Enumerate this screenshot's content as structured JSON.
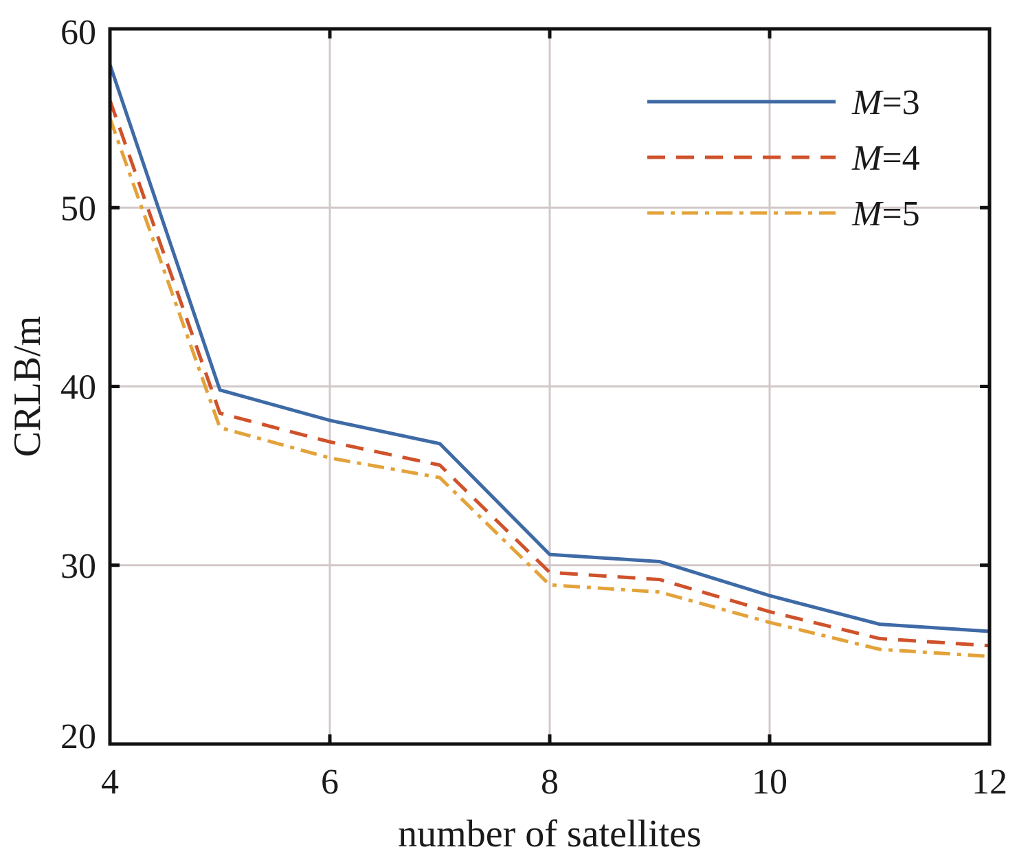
{
  "chart_data": {
    "type": "line",
    "title": "",
    "xlabel": "number of satellites",
    "ylabel": "CRLB/m",
    "xlim": [
      4,
      12
    ],
    "ylim": [
      20,
      60
    ],
    "xticks": [
      4,
      6,
      8,
      10,
      12
    ],
    "yticks": [
      20,
      30,
      40,
      50,
      60
    ],
    "xtick_labels": [
      "4",
      "6",
      "8",
      "10",
      "12"
    ],
    "ytick_labels": [
      "20",
      "30",
      "40",
      "50",
      "60"
    ],
    "grid": true,
    "legend_position": "top-right",
    "x": [
      4,
      5,
      6,
      7,
      8,
      9,
      10,
      11,
      12
    ],
    "series": [
      {
        "name": "M=3",
        "name_italic": "M",
        "name_rest": "=3",
        "color": "#3e6aa6",
        "style": "solid",
        "values": [
          58.0,
          39.8,
          38.1,
          36.8,
          30.6,
          30.2,
          28.3,
          26.7,
          26.3
        ]
      },
      {
        "name": "M=4",
        "name_italic": "M",
        "name_rest": "=4",
        "color": "#cf522b",
        "style": "dashed",
        "values": [
          56.0,
          38.5,
          36.9,
          35.6,
          29.6,
          29.2,
          27.4,
          25.9,
          25.5
        ]
      },
      {
        "name": "M=5",
        "name_italic": "M",
        "name_rest": "=5",
        "color": "#e3a33a",
        "style": "dashdot",
        "values": [
          55.0,
          37.7,
          36.0,
          34.9,
          28.9,
          28.5,
          26.8,
          25.3,
          24.9
        ]
      }
    ]
  }
}
